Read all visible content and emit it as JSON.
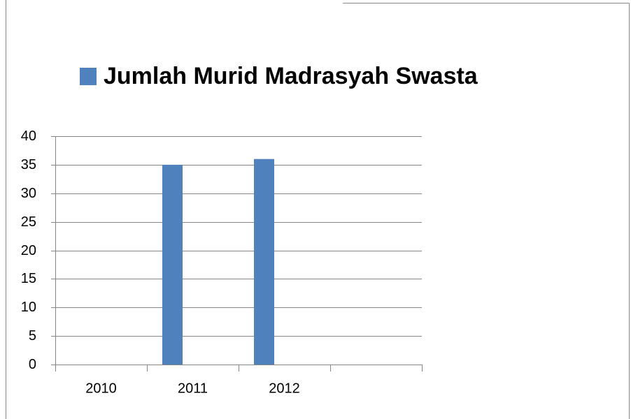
{
  "chart_data": {
    "type": "bar",
    "series": [
      {
        "name": "Jumlah Murid Madrasyah Swasta",
        "color": "#4f81bd",
        "values": [
          null,
          35,
          36,
          null
        ]
      }
    ],
    "categories": [
      "2010",
      "2011",
      "2012",
      null
    ],
    "ylim": [
      0,
      40
    ],
    "yticks": [
      0,
      5,
      10,
      15,
      20,
      25,
      30,
      35,
      40
    ],
    "grid": true,
    "legend": "top"
  }
}
